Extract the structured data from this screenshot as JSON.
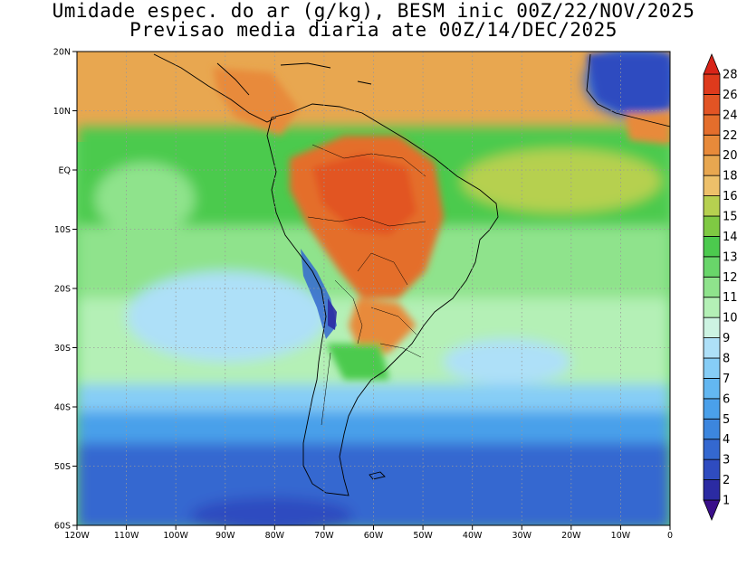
{
  "title": {
    "line1": "Umidade espec. do ar (g/kg), BESM inic 00Z/22/NOV/2025",
    "line2": "Previsao media diaria ate 00Z/14/DEC/2025"
  },
  "map": {
    "lon_range": [
      -120,
      0
    ],
    "lat_range": [
      -60,
      20
    ],
    "lat_ticks": [
      {
        "value": 20,
        "label": "20N"
      },
      {
        "value": 10,
        "label": "10N"
      },
      {
        "value": 0,
        "label": "EQ"
      },
      {
        "value": -10,
        "label": "10S"
      },
      {
        "value": -20,
        "label": "20S"
      },
      {
        "value": -30,
        "label": "30S"
      },
      {
        "value": -40,
        "label": "40S"
      },
      {
        "value": -50,
        "label": "50S"
      },
      {
        "value": -60,
        "label": "60S"
      }
    ],
    "lon_ticks": [
      {
        "value": -120,
        "label": "120W"
      },
      {
        "value": -110,
        "label": "110W"
      },
      {
        "value": -100,
        "label": "100W"
      },
      {
        "value": -90,
        "label": "90W"
      },
      {
        "value": -80,
        "label": "80W"
      },
      {
        "value": -70,
        "label": "70W"
      },
      {
        "value": -60,
        "label": "60W"
      },
      {
        "value": -50,
        "label": "50W"
      },
      {
        "value": -40,
        "label": "40W"
      },
      {
        "value": -30,
        "label": "30W"
      },
      {
        "value": -20,
        "label": "20W"
      },
      {
        "value": -10,
        "label": "10W"
      },
      {
        "value": 0,
        "label": "0"
      }
    ],
    "grid": "dotted"
  },
  "colorbar": {
    "levels": [
      "1",
      "2",
      "3",
      "4",
      "5",
      "6",
      "7",
      "8",
      "9",
      "10",
      "11",
      "12",
      "13",
      "14",
      "15",
      "16",
      "18",
      "20",
      "22",
      "24",
      "26",
      "28"
    ],
    "colors": [
      "#3a0f8a",
      "#2b2ba3",
      "#2f4cc0",
      "#3468d0",
      "#3c86de",
      "#4aa0ea",
      "#63b7f1",
      "#86cdf6",
      "#aee0f8",
      "#cdf3e2",
      "#b4f0b6",
      "#8fe38c",
      "#69d66a",
      "#4cca4e",
      "#7fc943",
      "#b6d050",
      "#edc06a",
      "#e8a750",
      "#e88a3a",
      "#e46e2c",
      "#e25424",
      "#de3a1c",
      "#d82418"
    ]
  },
  "legend_colors": {
    "ocean_tropical": "#e8a750",
    "ocean_midlat": "#69d66a",
    "ocean_south": "#3c86de",
    "amazon": "#e46e2c",
    "andes": "#3468d0",
    "coast": "#000000"
  }
}
